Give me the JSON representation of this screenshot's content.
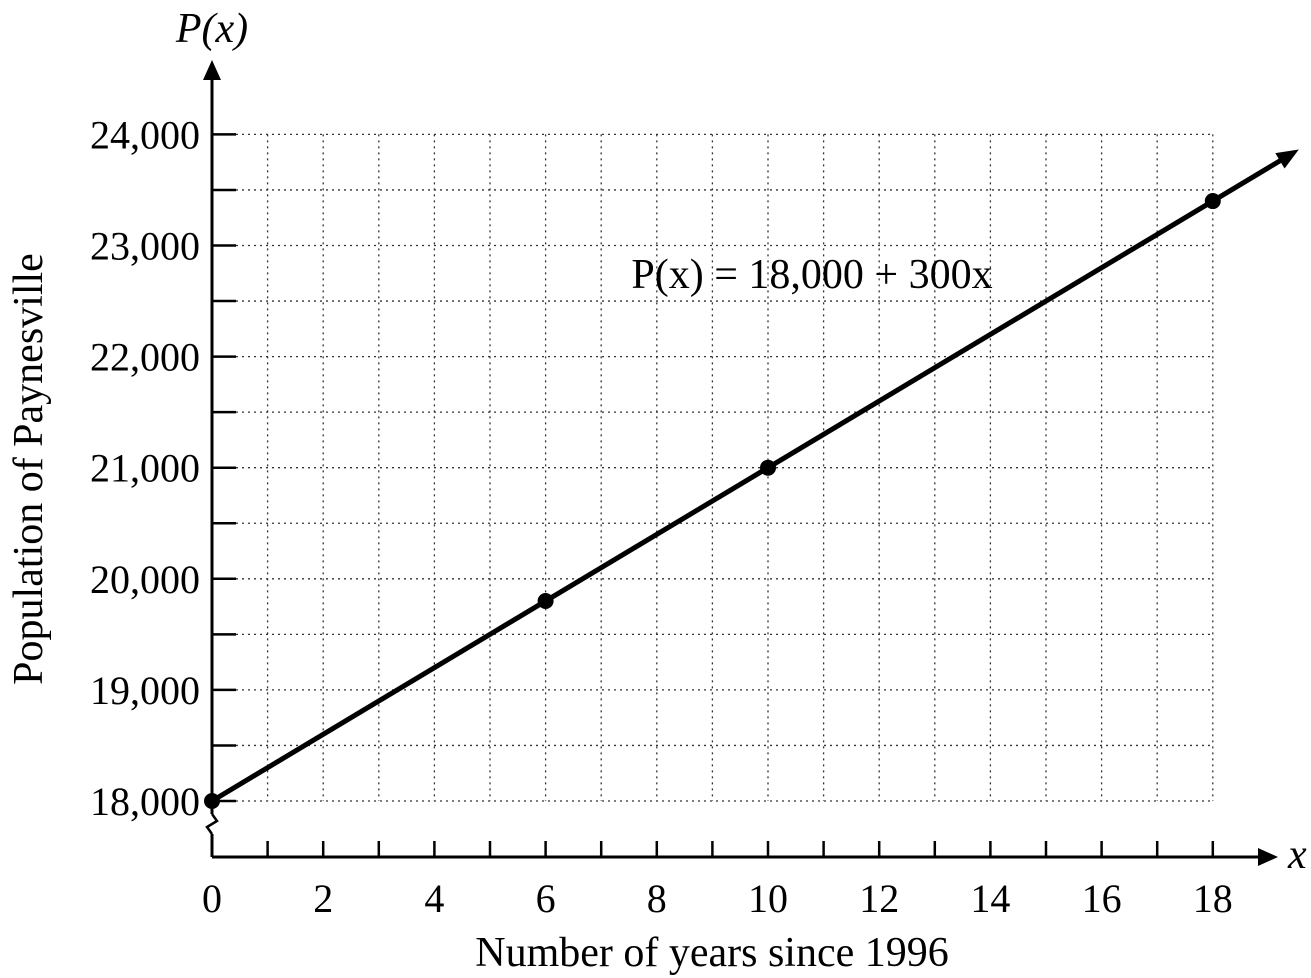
{
  "chart_data": {
    "type": "line",
    "xlabel": "Number of years since 1996",
    "ylabel": "Population of Paynesville",
    "x_axis_var": "x",
    "y_axis_var": "P(x)",
    "equation": "P(x) = 18,000 + 300x",
    "xlim": [
      0,
      19
    ],
    "ylim": [
      18000,
      24000
    ],
    "x_ticks": [
      0,
      2,
      4,
      6,
      8,
      10,
      12,
      14,
      16,
      18
    ],
    "x_tick_labels": [
      "0",
      "2",
      "4",
      "6",
      "8",
      "10",
      "12",
      "14",
      "16",
      "18"
    ],
    "y_ticks": [
      18000,
      19000,
      20000,
      21000,
      22000,
      23000,
      24000
    ],
    "y_tick_labels": [
      "18,000",
      "19,000",
      "20,000",
      "21,000",
      "22,000",
      "23,000",
      "24,000"
    ],
    "grid": true,
    "y_axis_break": true,
    "series": [
      {
        "line": {
          "intercept": 18000,
          "slope": 300,
          "x_start": 0,
          "x_end": 19.3
        },
        "points": [
          {
            "x": 0,
            "y": 18000
          },
          {
            "x": 6,
            "y": 19800
          },
          {
            "x": 10,
            "y": 21000
          },
          {
            "x": 18,
            "y": 23400
          }
        ]
      }
    ]
  }
}
